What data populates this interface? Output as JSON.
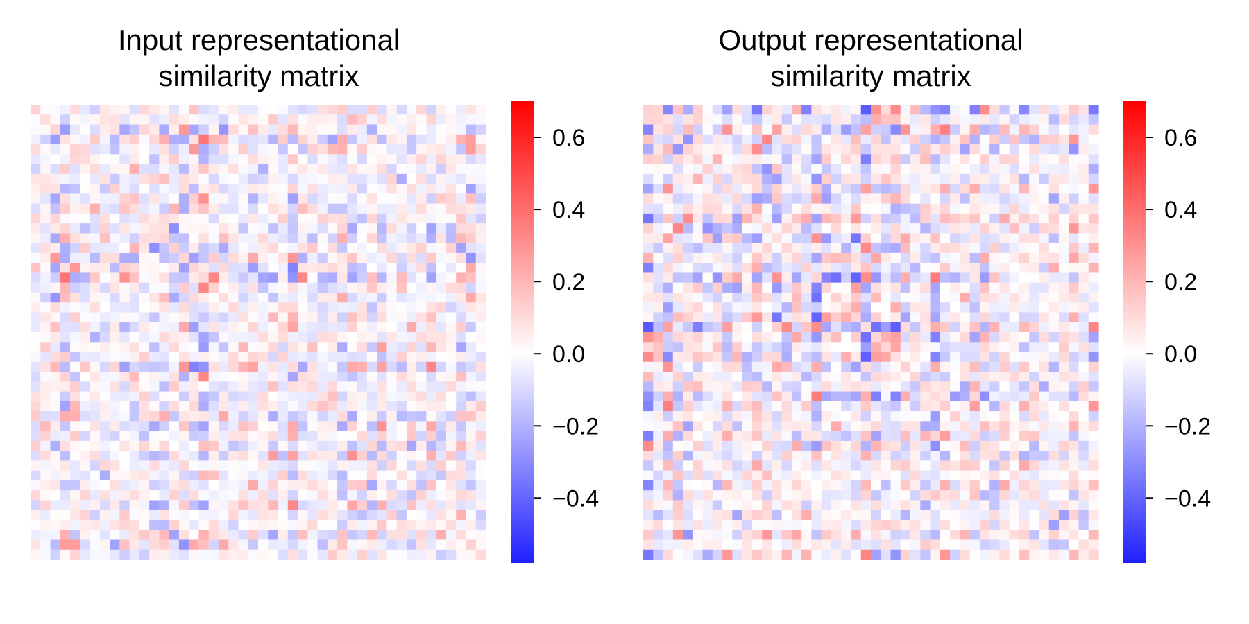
{
  "chart_data": [
    {
      "type": "heatmap",
      "title_lines": [
        "Input representational",
        "similarity matrix"
      ],
      "xlabel": "",
      "ylabel": "",
      "rows": 46,
      "cols": 46,
      "value_range": [
        -0.58,
        0.7
      ],
      "colormap": [
        "#0000ff",
        "#ffffff",
        "#ff0000"
      ],
      "colorbar_ticks": [
        0.6,
        0.4,
        0.2,
        0.0,
        -0.2,
        -0.4
      ],
      "colorbar_tick_labels": [
        "0.6",
        "0.4",
        "0.2",
        "0.0",
        "−0.2",
        "−0.4"
      ],
      "grid": false,
      "seed": 17
    },
    {
      "type": "heatmap",
      "title_lines": [
        "Output representational",
        "similarity matrix"
      ],
      "xlabel": "",
      "ylabel": "",
      "rows": 46,
      "cols": 46,
      "value_range": [
        -0.58,
        0.7
      ],
      "colormap": [
        "#0000ff",
        "#ffffff",
        "#ff0000"
      ],
      "colorbar_ticks": [
        0.6,
        0.4,
        0.2,
        0.0,
        -0.2,
        -0.4
      ],
      "colorbar_tick_labels": [
        "0.6",
        "0.4",
        "0.2",
        "0.0",
        "−0.2",
        "−0.4"
      ],
      "grid": false,
      "seed": 53
    }
  ]
}
